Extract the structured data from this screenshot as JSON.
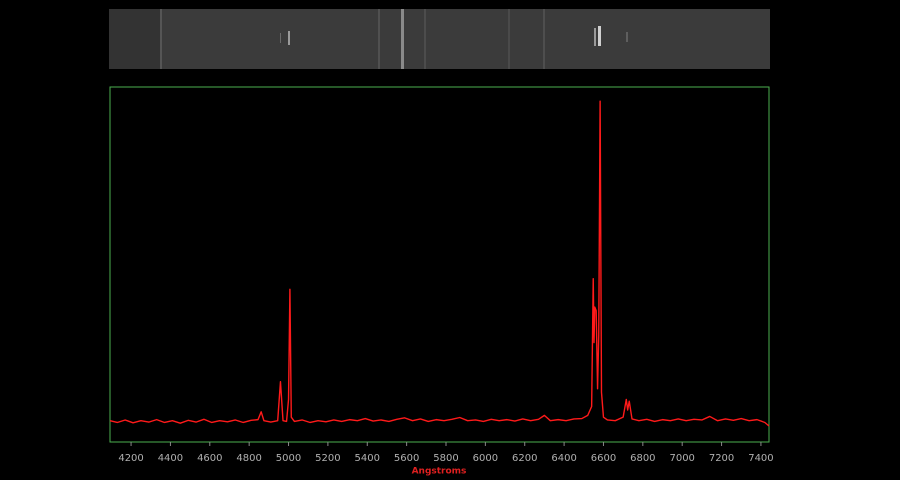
{
  "chart_data": {
    "type": "line",
    "x_label": "Angstroms",
    "color": "#ff1a1a",
    "xlim": [
      4093,
      7441
    ],
    "ylim": [
      0,
      100
    ],
    "xticks": [
      4200,
      4400,
      4600,
      4800,
      5000,
      5200,
      5400,
      5600,
      5800,
      6000,
      6200,
      6400,
      6600,
      6800,
      7000,
      7200,
      7400
    ],
    "x": [
      4093,
      4130,
      4170,
      4210,
      4250,
      4290,
      4330,
      4370,
      4410,
      4450,
      4490,
      4530,
      4570,
      4610,
      4650,
      4690,
      4730,
      4770,
      4810,
      4845,
      4861,
      4875,
      4910,
      4945,
      4959,
      4972,
      4990,
      5000,
      5007,
      5014,
      5030,
      5070,
      5110,
      5150,
      5190,
      5230,
      5270,
      5310,
      5350,
      5390,
      5430,
      5470,
      5510,
      5550,
      5590,
      5630,
      5670,
      5710,
      5750,
      5790,
      5830,
      5870,
      5910,
      5950,
      5990,
      6030,
      6070,
      6110,
      6150,
      6190,
      6230,
      6270,
      6300,
      6330,
      6370,
      6410,
      6450,
      6490,
      6520,
      6540,
      6548,
      6552,
      6556,
      6563,
      6570,
      6576,
      6583,
      6590,
      6600,
      6620,
      6660,
      6700,
      6716,
      6723,
      6731,
      6745,
      6780,
      6820,
      6860,
      6900,
      6940,
      6980,
      7020,
      7060,
      7100,
      7140,
      7180,
      7220,
      7260,
      7300,
      7340,
      7380,
      7420,
      7441
    ],
    "values": [
      6,
      5.5,
      6.2,
      5.4,
      6,
      5.6,
      6.3,
      5.5,
      6,
      5.3,
      6.1,
      5.6,
      6.4,
      5.5,
      6,
      5.7,
      6.2,
      5.5,
      6.1,
      6.3,
      8.5,
      6,
      5.6,
      6,
      17,
      6,
      5.8,
      12,
      43,
      7,
      5.8,
      6.2,
      5.5,
      6,
      5.7,
      6.2,
      5.8,
      6.3,
      6,
      6.6,
      5.9,
      6.2,
      5.8,
      6.4,
      6.8,
      6,
      6.5,
      5.8,
      6.3,
      6,
      6.4,
      6.9,
      6,
      6.2,
      5.8,
      6.4,
      6,
      6.3,
      5.9,
      6.5,
      6,
      6.4,
      7.5,
      6,
      6.3,
      6,
      6.5,
      6.6,
      7.5,
      10,
      46,
      28,
      38,
      37,
      15,
      30,
      96,
      14,
      7,
      6.2,
      6,
      7,
      12,
      9,
      11.5,
      6.5,
      6,
      6.4,
      5.8,
      6.3,
      6,
      6.5,
      6,
      6.4,
      6.2,
      7.2,
      6,
      6.5,
      6.1,
      6.6,
      6,
      6.3,
      5.5,
      4.5
    ]
  }
}
